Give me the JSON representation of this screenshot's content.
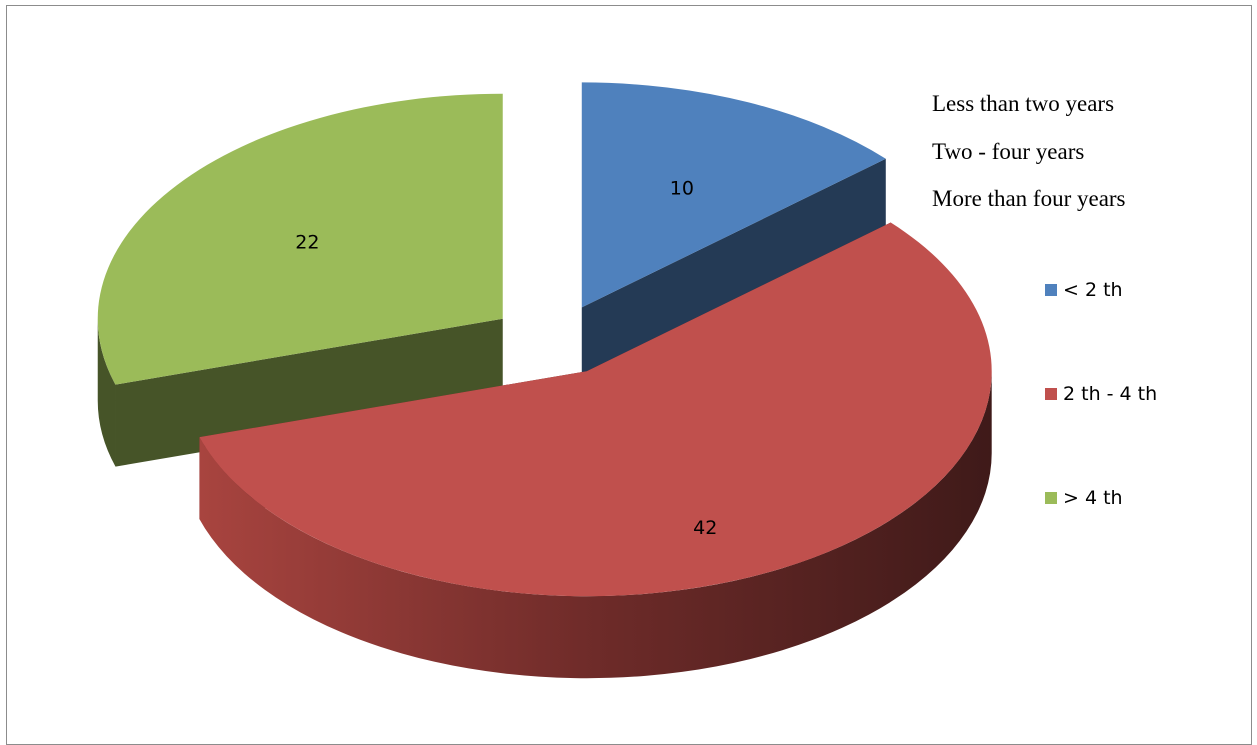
{
  "notes": [
    "Less than two years",
    "Two - four years",
    "More than four years"
  ],
  "chart_data": {
    "type": "pie",
    "style": "3d-exploded",
    "categories": [
      "< 2 th",
      "2 th - 4 th",
      "> 4 th"
    ],
    "values": [
      10,
      42,
      22
    ],
    "colors": [
      "#4f81bd",
      "#c0504d",
      "#9bbb59"
    ],
    "legend_position": "right",
    "title": ""
  }
}
